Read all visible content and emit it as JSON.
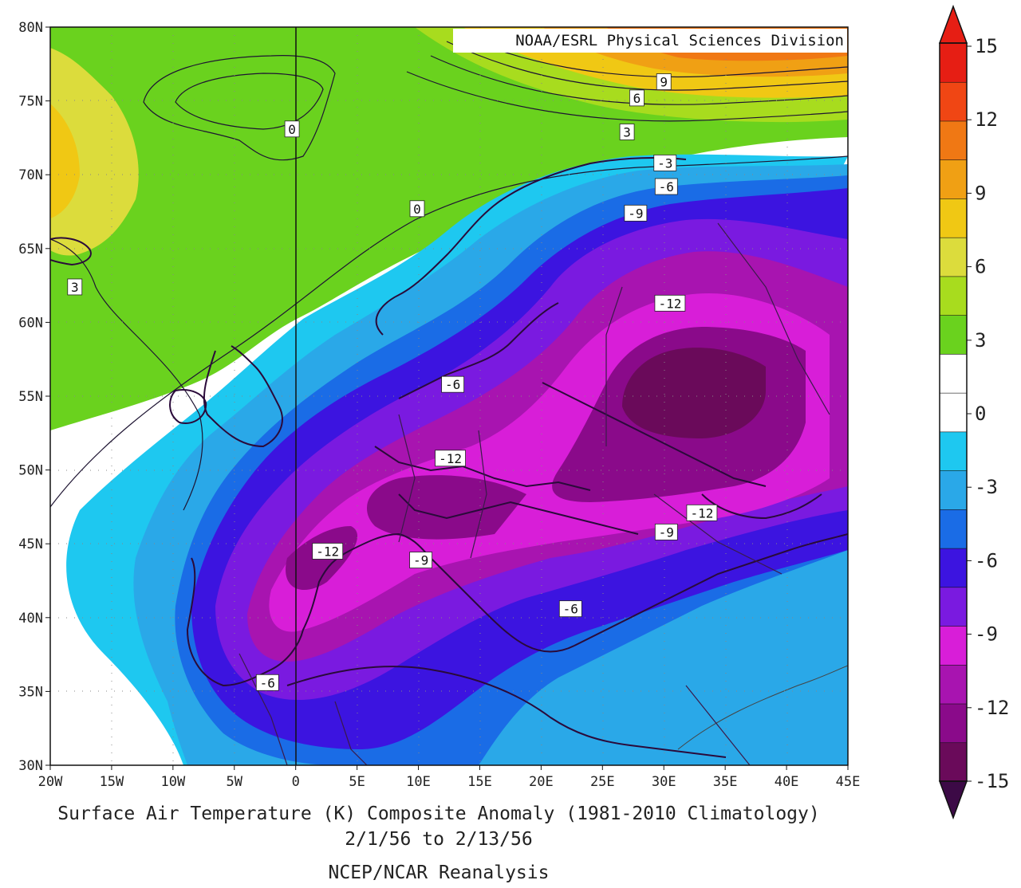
{
  "chart_data": {
    "type": "map",
    "credit": "NOAA/ESRL Physical Sciences Division",
    "title": "Surface Air Temperature (K) Composite Anomaly (1981-2010 Climatology)",
    "date_range": "2/1/56  to 2/13/56",
    "source": "NCEP/NCAR Reanalysis",
    "lon_range": [
      -20,
      45
    ],
    "lat_range": [
      30,
      80
    ],
    "x_ticks": [
      "20W",
      "15W",
      "10W",
      "5W",
      "0",
      "5E",
      "10E",
      "15E",
      "20E",
      "25E",
      "30E",
      "35E",
      "40E",
      "45E"
    ],
    "y_ticks": [
      "80N",
      "75N",
      "70N",
      "65N",
      "60N",
      "55N",
      "50N",
      "45N",
      "40N",
      "35N",
      "30N"
    ],
    "colorbar": {
      "labels": [
        "15",
        "12",
        "9",
        "6",
        "3",
        "0",
        "-3",
        "-6",
        "-9",
        "-12",
        "-15"
      ],
      "colors": [
        "#6a0a5a",
        "#8a0a8a",
        "#a814b0",
        "#d81ed8",
        "#7a1ae0",
        "#3c14e0",
        "#1a6ce6",
        "#2aa8e8",
        "#1ec8f0",
        "#ffffff",
        "#ffffff",
        "#6ad21e",
        "#a8dc1e",
        "#dcdc3c",
        "#f0c814",
        "#f0a014",
        "#f07814",
        "#f04614",
        "#e61e14"
      ],
      "arrow_top": "#e61e14",
      "arrow_bottom": "#3c0a46"
    },
    "contour_labels": [
      {
        "text": "9",
        "lon": 30,
        "lat": 76.3
      },
      {
        "text": "6",
        "lon": 27.8,
        "lat": 75.2
      },
      {
        "text": "3",
        "lon": 27,
        "lat": 72.9
      },
      {
        "text": "0",
        "lon": -0.3,
        "lat": 73.1
      },
      {
        "text": "0",
        "lon": 9.9,
        "lat": 67.7
      },
      {
        "text": "3",
        "lon": -18,
        "lat": 62.4
      },
      {
        "text": "-3",
        "lon": 30.1,
        "lat": 70.8
      },
      {
        "text": "-6",
        "lon": 30.2,
        "lat": 69.2
      },
      {
        "text": "-9",
        "lon": 27.7,
        "lat": 67.4
      },
      {
        "text": "-12",
        "lon": 30.5,
        "lat": 61.3
      },
      {
        "text": "-6",
        "lon": 12.8,
        "lat": 55.8
      },
      {
        "text": "-12",
        "lon": 12.6,
        "lat": 50.8
      },
      {
        "text": "-12",
        "lon": 33.1,
        "lat": 47.1
      },
      {
        "text": "-9",
        "lon": 30.2,
        "lat": 45.8
      },
      {
        "text": "-12",
        "lon": 2.6,
        "lat": 44.5
      },
      {
        "text": "-9",
        "lon": 10.2,
        "lat": 43.9
      },
      {
        "text": "-6",
        "lon": 22.4,
        "lat": 40.6
      },
      {
        "text": "-6",
        "lon": -2.3,
        "lat": 35.6
      }
    ]
  }
}
